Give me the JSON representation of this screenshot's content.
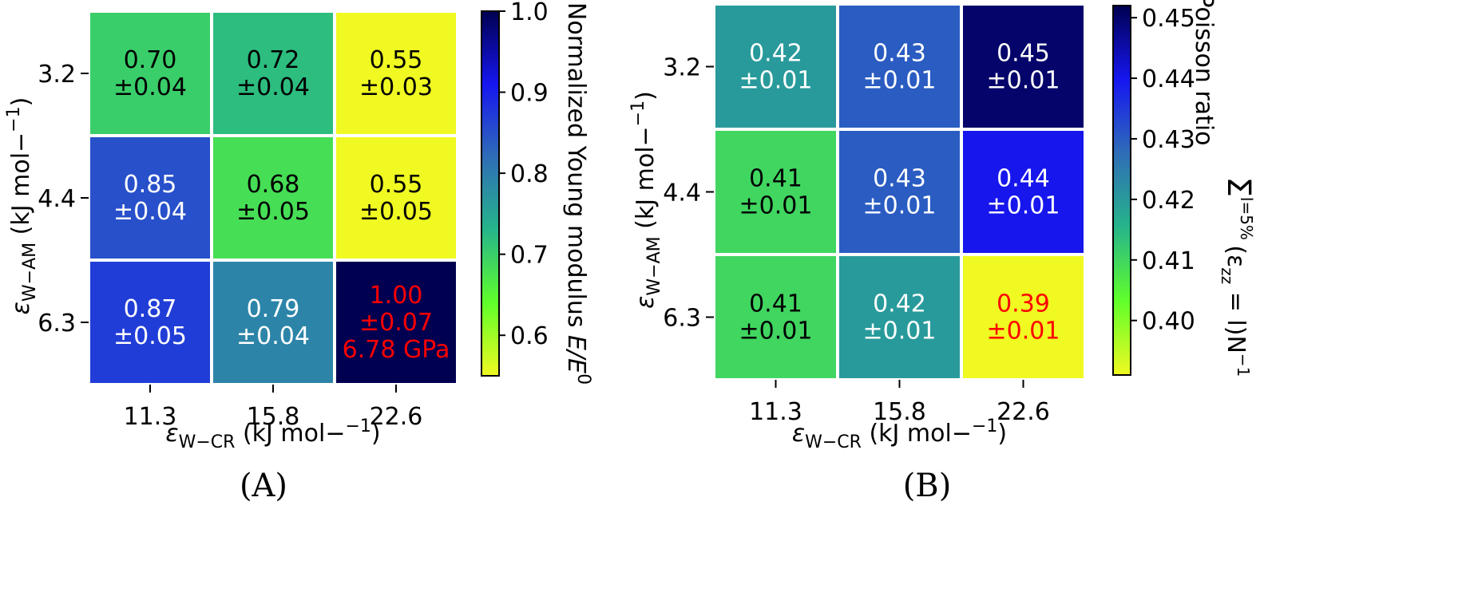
{
  "chart_data": [
    {
      "type": "heatmap",
      "panel_label": "(A)",
      "x_categories": [
        "11.3",
        "15.8",
        "22.6"
      ],
      "y_categories": [
        "3.2",
        "4.4",
        "6.3"
      ],
      "xlabel": "εW−CR (kJ mol−1)",
      "ylabel": "εW−AM (kJ mol−1)",
      "colorbar": {
        "label": "Normalized Young modulus E/E0",
        "ticks": [
          "0.6",
          "0.7",
          "0.8",
          "0.9",
          "1.0"
        ],
        "range": [
          0.55,
          1.0
        ]
      },
      "cells": [
        {
          "row": 0,
          "col": 0,
          "value": 0.7,
          "lines": [
            "0.70",
            "±0.04"
          ],
          "highlight": false
        },
        {
          "row": 0,
          "col": 1,
          "value": 0.72,
          "lines": [
            "0.72",
            "±0.04"
          ],
          "highlight": false
        },
        {
          "row": 0,
          "col": 2,
          "value": 0.55,
          "lines": [
            "0.55",
            "±0.03"
          ],
          "highlight": false
        },
        {
          "row": 1,
          "col": 0,
          "value": 0.85,
          "lines": [
            "0.85",
            "±0.04"
          ],
          "highlight": false
        },
        {
          "row": 1,
          "col": 1,
          "value": 0.68,
          "lines": [
            "0.68",
            "±0.05"
          ],
          "highlight": false
        },
        {
          "row": 1,
          "col": 2,
          "value": 0.55,
          "lines": [
            "0.55",
            "±0.05"
          ],
          "highlight": false
        },
        {
          "row": 2,
          "col": 0,
          "value": 0.87,
          "lines": [
            "0.87",
            "±0.05"
          ],
          "highlight": false
        },
        {
          "row": 2,
          "col": 1,
          "value": 0.79,
          "lines": [
            "0.79",
            "±0.04"
          ],
          "highlight": false
        },
        {
          "row": 2,
          "col": 2,
          "value": 1.0,
          "lines": [
            "1.00",
            "±0.07",
            "6.78 GPa"
          ],
          "highlight": true
        }
      ]
    },
    {
      "type": "heatmap",
      "panel_label": "(B)",
      "x_categories": [
        "11.3",
        "15.8",
        "22.6"
      ],
      "y_categories": [
        "3.2",
        "4.4",
        "6.3"
      ],
      "xlabel": "εW−CR (kJ mol−1)",
      "ylabel": "εW−AM (kJ mol−1)",
      "colorbar": {
        "label_line1": "Poisson ratio",
        "label_line2": "Σ l=5% ν(εzz = l)N−1",
        "ticks": [
          "0.40",
          "0.41",
          "0.42",
          "0.43",
          "0.44",
          "0.45"
        ],
        "range": [
          0.391,
          0.452
        ]
      },
      "cells": [
        {
          "row": 0,
          "col": 0,
          "value": 0.42,
          "lines": [
            "0.42",
            "±0.01"
          ],
          "highlight": false
        },
        {
          "row": 0,
          "col": 1,
          "value": 0.43,
          "lines": [
            "0.43",
            "±0.01"
          ],
          "highlight": false
        },
        {
          "row": 0,
          "col": 2,
          "value": 0.45,
          "lines": [
            "0.45",
            "±0.01"
          ],
          "highlight": false
        },
        {
          "row": 1,
          "col": 0,
          "value": 0.41,
          "lines": [
            "0.41",
            "±0.01"
          ],
          "highlight": false
        },
        {
          "row": 1,
          "col": 1,
          "value": 0.43,
          "lines": [
            "0.43",
            "±0.01"
          ],
          "highlight": false
        },
        {
          "row": 1,
          "col": 2,
          "value": 0.44,
          "lines": [
            "0.44",
            "±0.01"
          ],
          "highlight": false
        },
        {
          "row": 2,
          "col": 0,
          "value": 0.41,
          "lines": [
            "0.41",
            "±0.01"
          ],
          "highlight": false
        },
        {
          "row": 2,
          "col": 1,
          "value": 0.42,
          "lines": [
            "0.42",
            "±0.01"
          ],
          "highlight": false
        },
        {
          "row": 2,
          "col": 2,
          "value": 0.39,
          "lines": [
            "0.39",
            "±0.01"
          ],
          "highlight": true
        }
      ]
    }
  ],
  "colors": {
    "highlight_text": "#ff0000",
    "light_text": "#ffffff",
    "dark_text": "#000000",
    "colormap": [
      "#f0f921",
      "#60ff2a",
      "#26b58a",
      "#2f6db7",
      "#1616f0",
      "#000050"
    ]
  }
}
